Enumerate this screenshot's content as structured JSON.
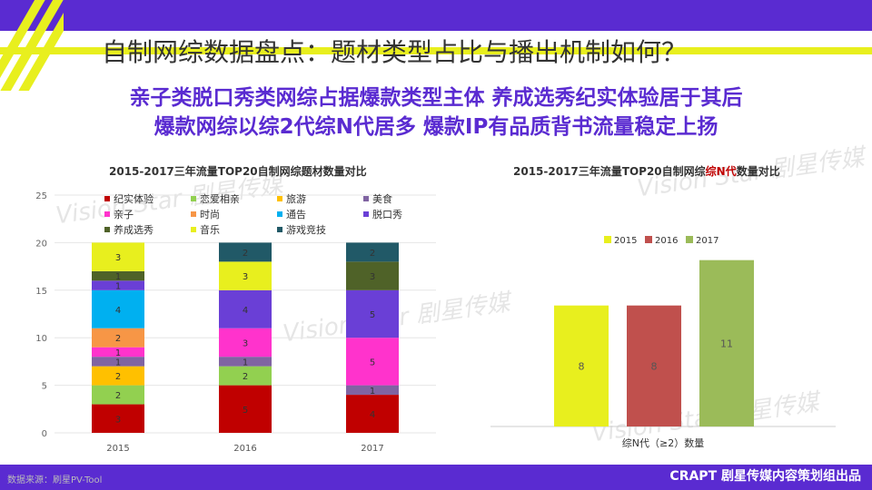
{
  "slide": {
    "title": "自制网综数据盘点：题材类型占比与播出机制如何？",
    "subtitle_line1": "亲子类脱口秀类网综占据爆款类型主体 养成选秀纪实体验居于其后",
    "subtitle_line2": "爆款网综以综2代综N代居多 爆款IP有品质背书流量稳定上扬",
    "source": "数据来源：刷星PV-Tool",
    "brand": "CRAPT 剧星传媒内容策划组出品",
    "watermark": "Vision Star 剧星传媒",
    "colors": {
      "purple": "#5a2bd1",
      "yellow": "#e8ef1e"
    }
  },
  "chart_data": [
    {
      "type": "bar",
      "stacked": true,
      "title": "2015-2017三年流量TOP20自制网综题材数量对比",
      "categories": [
        "2015",
        "2016",
        "2017"
      ],
      "ylim": [
        0,
        25
      ],
      "yticks": [
        "0",
        "5",
        "10",
        "15",
        "20",
        "25"
      ],
      "legend_position": "top-left",
      "series": [
        {
          "name": "纪实体验",
          "color": "#c00000",
          "values": [
            3,
            5,
            4
          ]
        },
        {
          "name": "恋爱相亲",
          "color": "#92d050",
          "values": [
            2,
            2,
            0
          ]
        },
        {
          "name": "旅游",
          "color": "#ffc000",
          "values": [
            2,
            0,
            0
          ]
        },
        {
          "name": "美食",
          "color": "#8064a2",
          "values": [
            1,
            1,
            1
          ]
        },
        {
          "name": "亲子",
          "color": "#ff33cc",
          "values": [
            1,
            3,
            5
          ]
        },
        {
          "name": "时尚",
          "color": "#f79646",
          "values": [
            2,
            0,
            0
          ]
        },
        {
          "name": "通告",
          "color": "#00b0f0",
          "values": [
            4,
            0,
            0
          ]
        },
        {
          "name": "脱口秀",
          "color": "#6a3fd6",
          "values": [
            1,
            4,
            5
          ]
        },
        {
          "name": "养成选秀",
          "color": "#4f6228",
          "values": [
            1,
            0,
            3
          ]
        },
        {
          "name": "音乐",
          "color": "#e8ef1e",
          "values": [
            3,
            3,
            0
          ]
        },
        {
          "name": "游戏竞技",
          "color": "#215967",
          "values": [
            0,
            2,
            2
          ]
        }
      ]
    },
    {
      "type": "bar",
      "title_parts": [
        "2015-2017三年流量TOP20自制网综",
        "综N代",
        "数量对比"
      ],
      "categories": [
        "综N代（≥2）数量"
      ],
      "xlabel": "综N代（≥2）数量",
      "legend_position": "top",
      "series": [
        {
          "name": "2015",
          "color": "#e8ef1e",
          "values": [
            8
          ]
        },
        {
          "name": "2016",
          "color": "#c0504d",
          "values": [
            8
          ]
        },
        {
          "name": "2017",
          "color": "#9bbb59",
          "values": [
            11
          ]
        }
      ],
      "title_highlight_color": "#c00000"
    }
  ]
}
